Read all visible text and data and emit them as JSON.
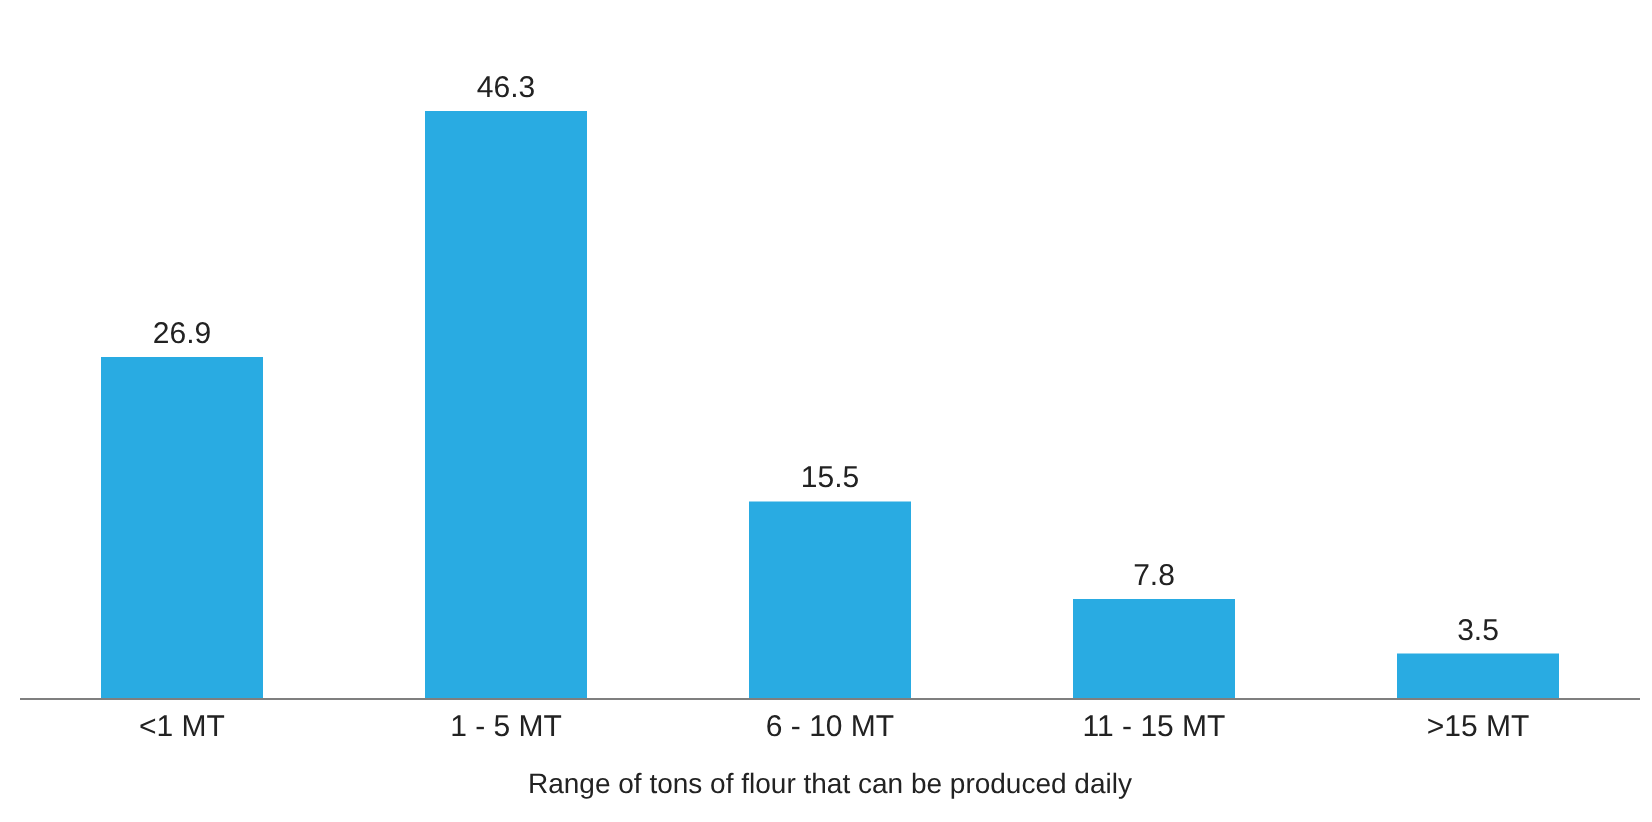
{
  "chart_data": {
    "type": "bar",
    "xlabel": "Range of tons of flour that can be produced daily",
    "categories": [
      "<1 MT",
      "1 - 5 MT",
      "6 - 10 MT",
      "11 - 15 MT",
      ">15 MT"
    ],
    "values": [
      26.9,
      46.3,
      15.5,
      7.8,
      3.5
    ],
    "color": "#29abe2",
    "data_labels": true
  }
}
